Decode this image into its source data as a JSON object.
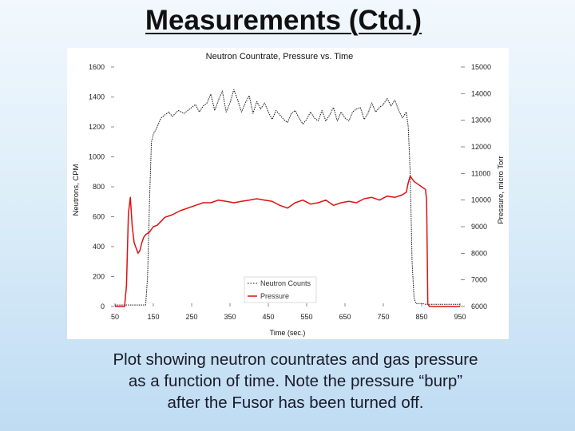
{
  "slide": {
    "title": "Measurements (Ctd.)",
    "caption_lines": [
      "Plot showing neutron countrates and gas pressure",
      "as a function of time.  Note the pressure “burp”",
      "after the Fusor has been turned off."
    ]
  },
  "chart_data": {
    "type": "line",
    "title": "Neutron Countrate, Pressure vs. Time",
    "xlabel": "Time (sec.)",
    "ylabel": "Neutrons, CPM",
    "y2label": "Pressure, micro Torr",
    "xlim": [
      50,
      950
    ],
    "ylim": [
      0,
      1600
    ],
    "y2lim": [
      6000,
      15000
    ],
    "x_ticks": [
      50,
      150,
      250,
      350,
      450,
      550,
      650,
      750,
      850,
      950
    ],
    "y_ticks": [
      0,
      200,
      400,
      600,
      800,
      1000,
      1200,
      1400,
      1600
    ],
    "y2_ticks": [
      6000,
      7000,
      8000,
      9000,
      10000,
      11000,
      12000,
      13000,
      14000,
      15000
    ],
    "x_tick_labels": [
      "50",
      "150",
      "250",
      "350",
      "450",
      "550",
      "650",
      "750",
      "850",
      "950"
    ],
    "y_tick_labels": [
      "0",
      "200",
      "400",
      "600",
      "800",
      "1000",
      "1200",
      "1400",
      "1600"
    ],
    "y2_tick_labels": [
      "6000",
      "7000",
      "8000",
      "9000",
      "10000",
      "11000",
      "12000",
      "13000",
      "14000",
      "15000"
    ],
    "grid": false,
    "legend_position": "bottom-center",
    "series": [
      {
        "name": "Neutron Counts",
        "axis": "left",
        "color": "#111111",
        "x": [
          50,
          80,
          100,
          110,
          120,
          130,
          135,
          140,
          145,
          150,
          160,
          170,
          180,
          190,
          200,
          215,
          230,
          245,
          260,
          270,
          280,
          290,
          300,
          310,
          320,
          330,
          340,
          350,
          360,
          370,
          380,
          390,
          400,
          410,
          420,
          430,
          440,
          450,
          460,
          470,
          480,
          490,
          500,
          510,
          520,
          530,
          540,
          550,
          560,
          570,
          580,
          590,
          600,
          610,
          620,
          630,
          640,
          650,
          660,
          670,
          680,
          690,
          700,
          710,
          720,
          730,
          740,
          750,
          760,
          770,
          780,
          790,
          800,
          810,
          815,
          820,
          825,
          830,
          835,
          840,
          845,
          850,
          860,
          880,
          900,
          920,
          950
        ],
        "y": [
          10,
          10,
          10,
          10,
          10,
          10,
          200,
          700,
          1100,
          1150,
          1200,
          1260,
          1280,
          1300,
          1270,
          1310,
          1290,
          1320,
          1350,
          1300,
          1340,
          1360,
          1420,
          1310,
          1380,
          1440,
          1300,
          1360,
          1450,
          1380,
          1300,
          1360,
          1410,
          1290,
          1370,
          1320,
          1360,
          1300,
          1250,
          1310,
          1280,
          1250,
          1230,
          1290,
          1310,
          1260,
          1220,
          1250,
          1300,
          1260,
          1240,
          1310,
          1240,
          1280,
          1330,
          1240,
          1300,
          1260,
          1240,
          1300,
          1320,
          1330,
          1250,
          1290,
          1360,
          1300,
          1330,
          1350,
          1390,
          1340,
          1380,
          1310,
          1260,
          1300,
          1200,
          900,
          300,
          60,
          20,
          20,
          20,
          20,
          15,
          15,
          15,
          15,
          15
        ]
      },
      {
        "name": "Pressure",
        "axis": "right",
        "color": "#dd1111",
        "x": [
          50,
          75,
          80,
          85,
          90,
          95,
          100,
          105,
          110,
          115,
          120,
          125,
          130,
          140,
          150,
          160,
          170,
          180,
          200,
          220,
          240,
          260,
          280,
          300,
          320,
          340,
          360,
          380,
          400,
          420,
          440,
          460,
          480,
          500,
          520,
          540,
          560,
          580,
          600,
          620,
          640,
          660,
          680,
          700,
          720,
          740,
          760,
          780,
          800,
          810,
          815,
          820,
          830,
          840,
          850,
          855,
          860,
          863,
          866,
          870,
          900,
          950
        ],
        "y": [
          6000,
          6000,
          6800,
          9500,
          10100,
          9000,
          8400,
          8200,
          8000,
          8100,
          8400,
          8600,
          8700,
          8800,
          9000,
          9050,
          9200,
          9350,
          9450,
          9600,
          9700,
          9800,
          9900,
          9900,
          10000,
          9950,
          9900,
          9950,
          10000,
          10050,
          10000,
          9950,
          9800,
          9700,
          9900,
          10000,
          9850,
          9900,
          10000,
          9800,
          9900,
          9950,
          9900,
          10050,
          10100,
          10000,
          10150,
          10100,
          10200,
          10300,
          10650,
          10900,
          10700,
          10600,
          10500,
          10450,
          10400,
          10000,
          6100,
          6000,
          6000,
          6000
        ]
      }
    ]
  }
}
